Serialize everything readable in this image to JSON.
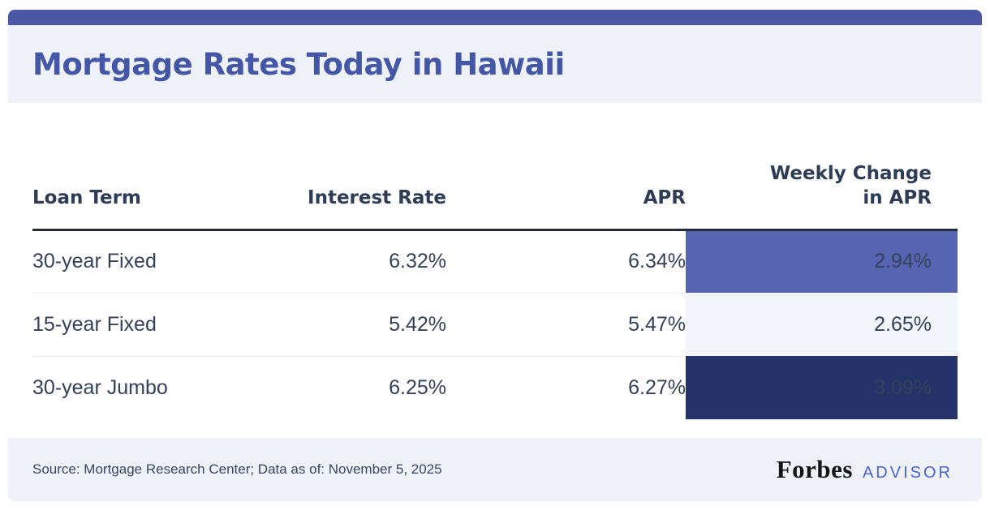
{
  "colors": {
    "accent_bar": "#4A57A4",
    "band_bg": "#EEF1F8",
    "title": "#4456A6",
    "header_text": "#2E3C55",
    "cell_text": "#33415A",
    "rule_dark": "#232A3A",
    "rule_light": "#E9EBF0",
    "change_medium_bg": "#5565B2",
    "change_light_bg": "#F2F5FC",
    "change_dark_bg": "#25336B",
    "footer_text": "#3A4660",
    "forbes": "#151515",
    "advisor": "#4C63D2"
  },
  "header": {
    "title": "Mortgage Rates Today in Hawaii"
  },
  "table": {
    "columns": [
      "Loan Term",
      "Interest Rate",
      "APR",
      "Weekly Change in APR"
    ],
    "rows": [
      {
        "loan_term": "30-year Fixed",
        "interest_rate": "6.32%",
        "apr": "6.34%",
        "weekly_change": "2.94%",
        "highlight": "medium"
      },
      {
        "loan_term": "15-year Fixed",
        "interest_rate": "5.42%",
        "apr": "5.47%",
        "weekly_change": "2.65%",
        "highlight": "light"
      },
      {
        "loan_term": "30-year Jumbo",
        "interest_rate": "6.25%",
        "apr": "6.27%",
        "weekly_change": "3.09%",
        "highlight": "dark"
      }
    ]
  },
  "footer": {
    "source": "Source: Mortgage Research Center; Data as of: November 5, 2025",
    "brand": "Forbes",
    "brand_suffix": "ADVISOR"
  },
  "chart_data": {
    "type": "table",
    "title": "Mortgage Rates Today in Hawaii",
    "columns": [
      "Loan Term",
      "Interest Rate",
      "APR",
      "Weekly Change in APR"
    ],
    "rows": [
      [
        "30-year Fixed",
        6.32,
        6.34,
        2.94
      ],
      [
        "15-year Fixed",
        5.42,
        5.47,
        2.65
      ],
      [
        "30-year Jumbo",
        6.25,
        6.27,
        3.09
      ]
    ],
    "units": "percent",
    "notes": "Weekly Change in APR column is color-highlighted per row: medium blue, pale lavender, dark navy",
    "source": "Mortgage Research Center",
    "data_as_of": "November 5, 2025"
  }
}
